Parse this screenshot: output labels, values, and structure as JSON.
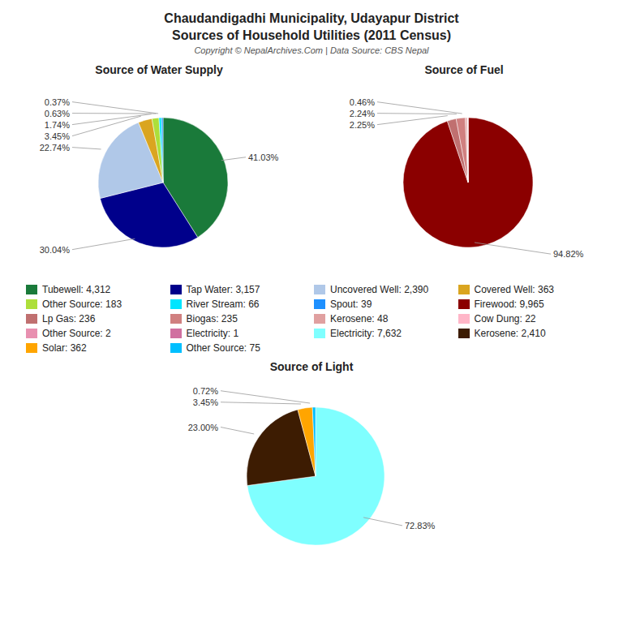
{
  "title": "Chaudandigadhi Municipality, Udayapur District",
  "subtitle": "Sources of Household Utilities (2011 Census)",
  "annotations": [
    "Copyright © NepalArchives.Com | Data Source: CBS Nepal"
  ],
  "chart_data": [
    {
      "type": "pie",
      "title": "Source of Water Supply",
      "categories": [
        "Tubewell: 4,312",
        "Tap Water: 3,157",
        "Uncovered Well: 2,390",
        "Covered Well: 363",
        "Other Source: 183",
        "River Stream: 66",
        "Spout: 39"
      ],
      "values": [
        41.03,
        30.04,
        22.74,
        3.45,
        1.74,
        0.63,
        0.37
      ],
      "value_labels": [
        "41.03%",
        "30.04%",
        "22.74%",
        "3.45%",
        "1.74%",
        "0.63%",
        "0.37%"
      ],
      "colors": [
        "#1a7a3a",
        "#00008B",
        "#B0C8E8",
        "#DAA520",
        "#ADDF3A",
        "#00E5FF",
        "#1E90FF"
      ],
      "data_labels": true
    },
    {
      "type": "pie",
      "title": "Source of Fuel",
      "categories": [
        "Firewood: 9,965",
        "Lp Gas: 236",
        "Biogas: 235",
        "Kerosene: 48",
        "Cow Dung: 22",
        "Other Source: 2",
        "Electricity: 1"
      ],
      "values": [
        94.82,
        2.25,
        2.24,
        0.46,
        0.21,
        0.02,
        0.01
      ],
      "value_labels": [
        "94.82%",
        "2.25%",
        "2.24%",
        "0.46%",
        null,
        null,
        null
      ],
      "colors": [
        "#8B0000",
        "#C07070",
        "#D08080",
        "#E0A0A0",
        "#FFB6C8",
        "#E890B0",
        "#D070A0"
      ],
      "data_labels": true
    },
    {
      "type": "pie",
      "title": "Source of Light",
      "categories": [
        "Electricity: 7,632",
        "Kerosene: 2,410",
        "Solar: 362",
        "Other Source: 75"
      ],
      "values": [
        72.83,
        23.0,
        3.45,
        0.72
      ],
      "value_labels": [
        "72.83%",
        "23.00%",
        "3.45%",
        "0.72%"
      ],
      "colors": [
        "#7FFFFF",
        "#3D1C02",
        "#FFA500",
        "#00BFFF"
      ],
      "data_labels": true
    }
  ]
}
